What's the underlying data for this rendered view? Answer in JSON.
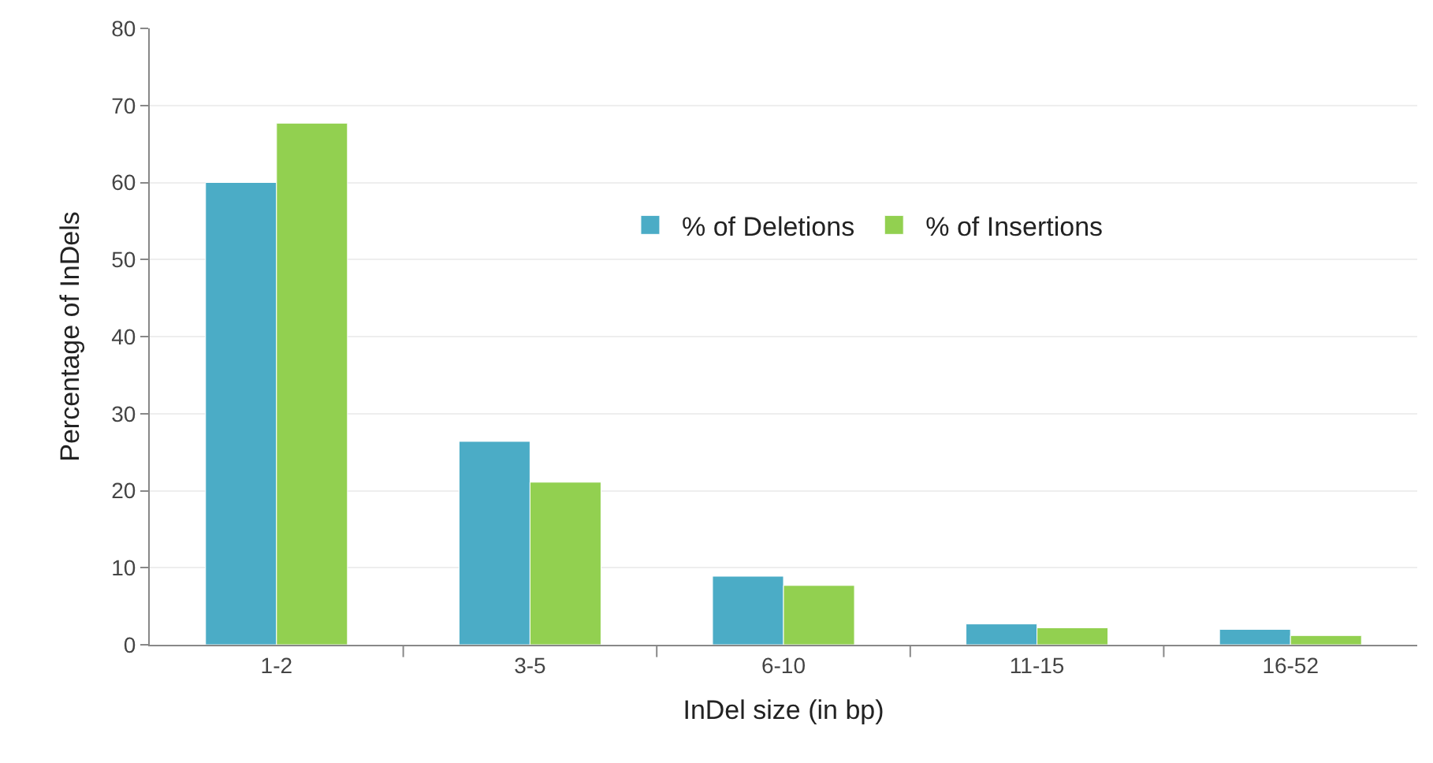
{
  "chart_data": {
    "type": "bar",
    "xlabel": "InDel size (in bp)",
    "ylabel": "Percentage of InDels",
    "categories": [
      "1-2",
      "3-5",
      "6-10",
      "11-15",
      "16-52"
    ],
    "series": [
      {
        "name": "% of Deletions",
        "color": "#4bacc6",
        "values": [
          60.0,
          26.4,
          8.9,
          2.7,
          2.0
        ]
      },
      {
        "name": "% of Insertions",
        "color": "#92d050",
        "values": [
          67.7,
          21.1,
          7.7,
          2.2,
          1.2
        ]
      }
    ],
    "ylim": [
      0,
      80
    ],
    "yticks": [
      0,
      10,
      20,
      30,
      40,
      50,
      60,
      70,
      80
    ],
    "grid": "y",
    "legend": "top right"
  }
}
